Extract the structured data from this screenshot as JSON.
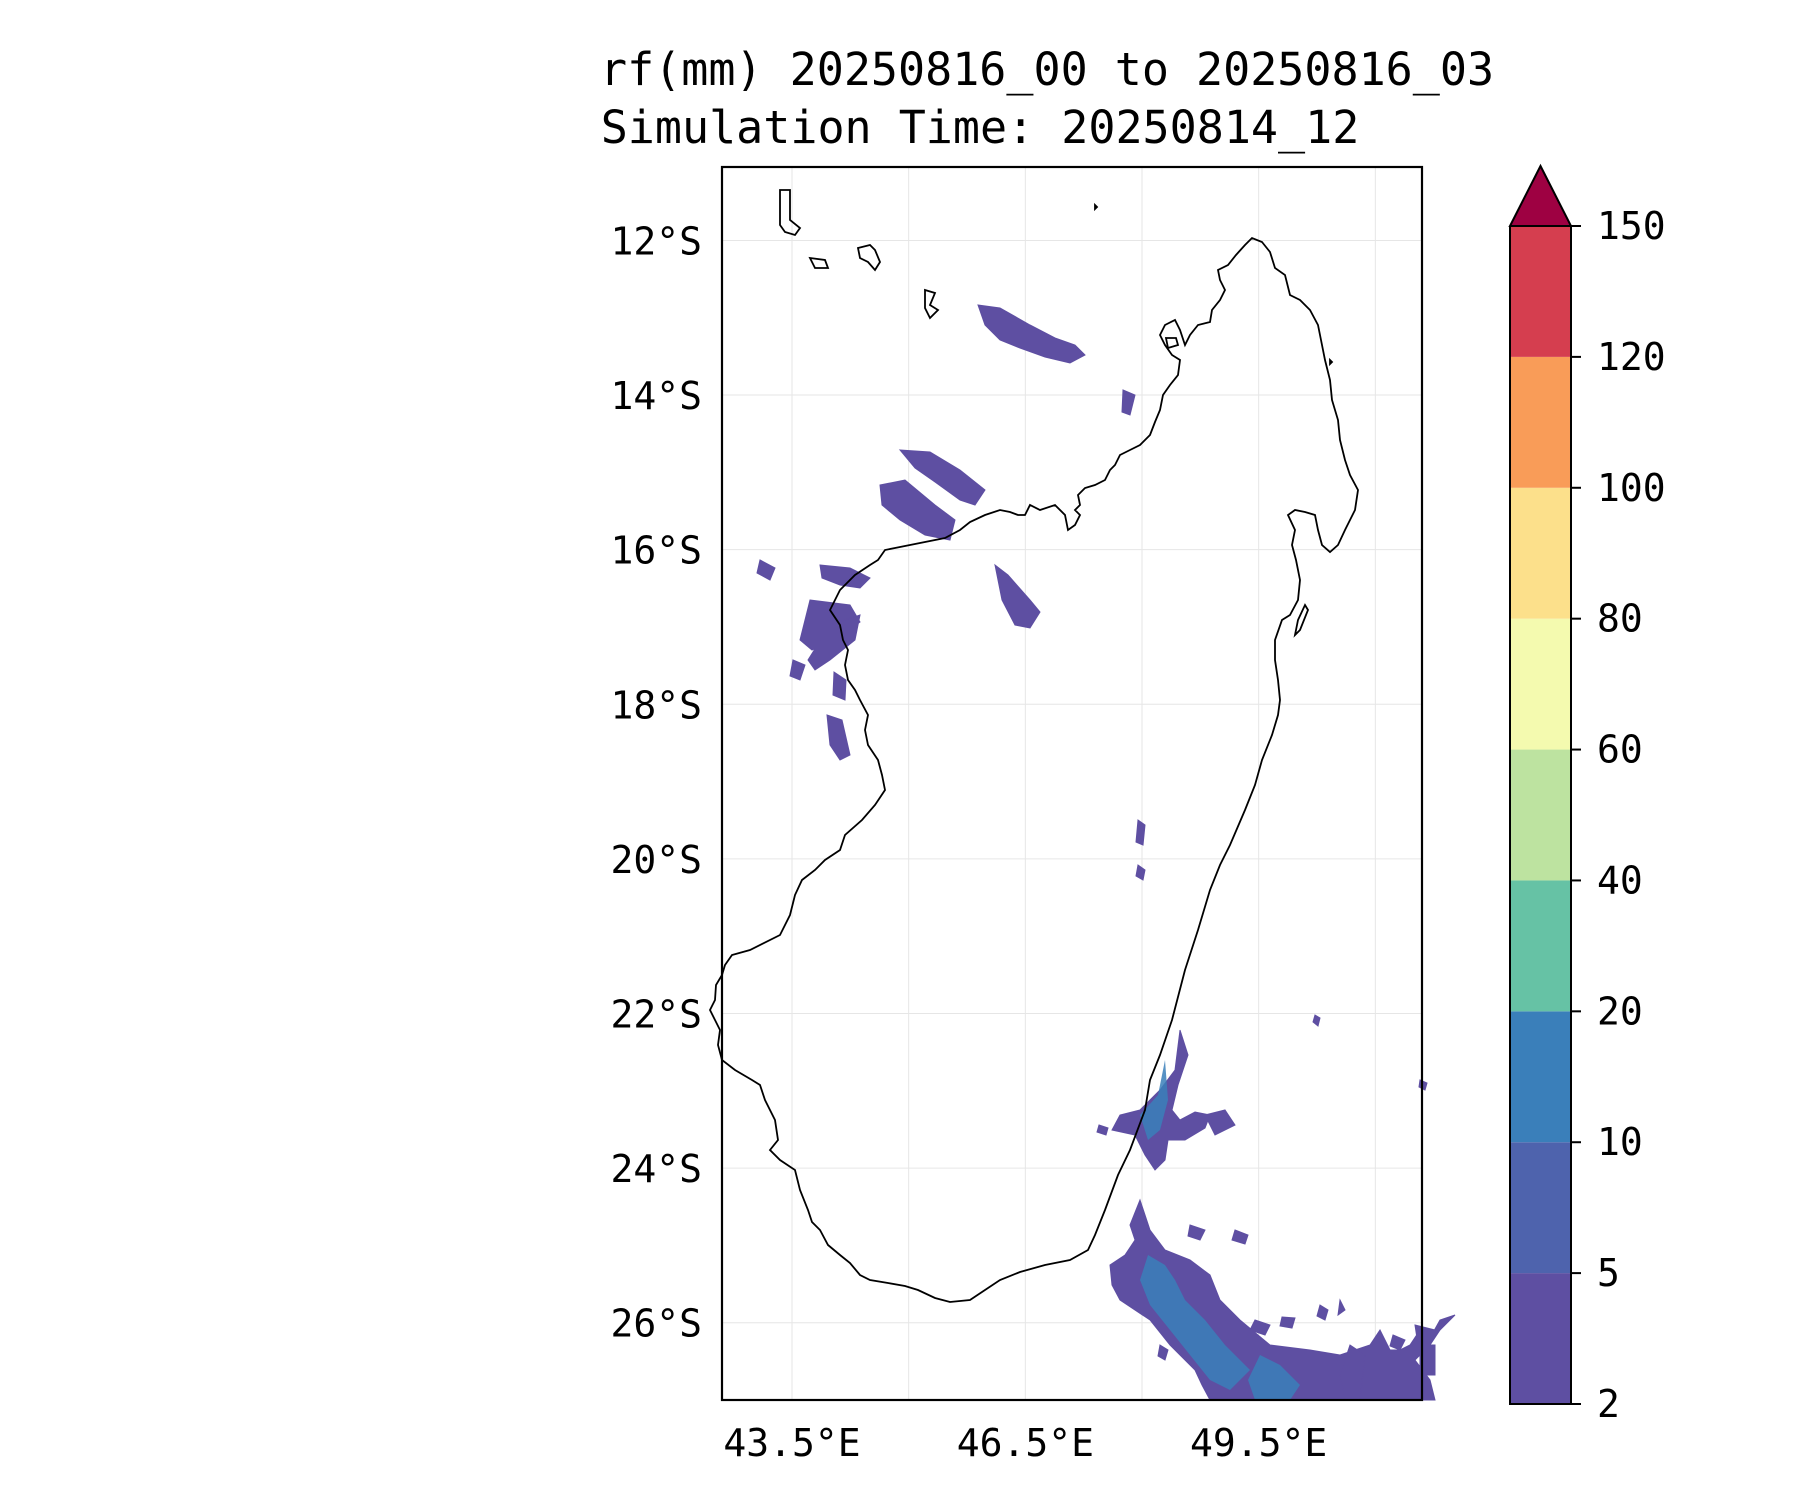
{
  "title": {
    "line1": "rf(mm) 20250816_00 to 20250816_03",
    "line2": "Simulation Time: 20250814_12"
  },
  "map": {
    "lon_range": [
      42.6,
      51.6
    ],
    "lat_range": [
      -27.0,
      -11.05
    ],
    "lat_ticks": [
      {
        "value": -12,
        "label": "12°S"
      },
      {
        "value": -14,
        "label": "14°S"
      },
      {
        "value": -16,
        "label": "16°S"
      },
      {
        "value": -18,
        "label": "18°S"
      },
      {
        "value": -20,
        "label": "20°S"
      },
      {
        "value": -22,
        "label": "22°S"
      },
      {
        "value": -24,
        "label": "24°S"
      },
      {
        "value": -26,
        "label": "26°S"
      }
    ],
    "lon_ticks": [
      {
        "value": 43.5,
        "label": "43.5°E"
      },
      {
        "value": 46.5,
        "label": "46.5°E"
      },
      {
        "value": 49.5,
        "label": "49.5°E"
      }
    ],
    "grid_lons": [
      43.5,
      45.0,
      46.5,
      48.0,
      49.5,
      51.0
    ],
    "grid": true
  },
  "colorbar": {
    "levels": [
      "2",
      "5",
      "10",
      "20",
      "40",
      "60",
      "80",
      "100",
      "120",
      "150"
    ],
    "colors": [
      "#5e4fa2",
      "#4e63ad",
      "#3a7fba",
      "#66c2a5",
      "#bde3a0",
      "#f4faaf",
      "#fce08b",
      "#f99c58",
      "#d53e4f"
    ],
    "extend_color": "#9e0142",
    "extend": "max"
  },
  "rain_colors": {
    "light": "#5e4fa2",
    "moderate": "#4e63ad",
    "heavier": "#3a7fba"
  }
}
